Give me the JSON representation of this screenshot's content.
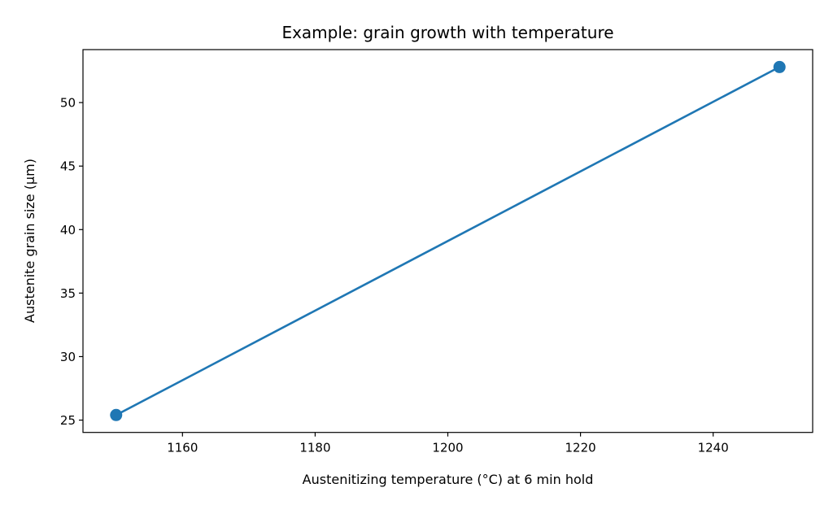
{
  "chart_data": {
    "type": "line",
    "title": "Example: grain growth with temperature",
    "xlabel": "Austenitizing temperature (°C) at 6 min hold",
    "ylabel": "Austenite grain size (µm)",
    "x": [
      1150,
      1250
    ],
    "series": [
      {
        "values": [
          25.4,
          52.8
        ],
        "color": "#1f77b4",
        "marker": "circle"
      }
    ],
    "xlim": [
      1145,
      1255
    ],
    "ylim": [
      24.03,
      54.17
    ],
    "xticks": [
      1160,
      1180,
      1200,
      1220,
      1240
    ],
    "yticks": [
      25,
      30,
      35,
      40,
      45,
      50
    ],
    "grid": false
  }
}
